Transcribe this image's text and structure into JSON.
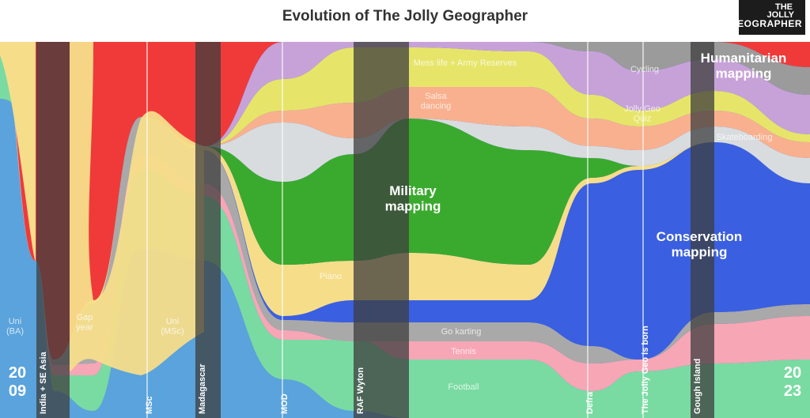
{
  "page": {
    "title": "Evolution of The Jolly Geographer",
    "logo": {
      "line1": "THE",
      "line2": "JOLLY",
      "line3": "GEOGRAPHER"
    }
  },
  "colors": {
    "uni": "#5aa3dc",
    "football": "#79dba2",
    "tennis": "#f7a6b6",
    "gokarting": "#a9a9a9",
    "conservation": "#3a5fe0",
    "piano": "#f6dd8a",
    "military": "#3aaa2e",
    "skateboarding": "#d8dcde",
    "salsa": "#f9b08f",
    "messlife": "#e6e56a",
    "quiz": "#c7a2d8",
    "cycling": "#9b9b9b",
    "humanitarian": "#f03a3a",
    "event_bar": "#3d3d3d"
  },
  "chart_data": {
    "type": "area",
    "title": "Evolution of The Jolly Geographer",
    "subtitle": "",
    "x_start_label": "2009",
    "x_end_label": "2023",
    "year_start": [
      "20",
      "09"
    ],
    "year_end": [
      "20",
      "23"
    ],
    "events": [
      "India + SE Asia",
      "MSc",
      "Madagascar",
      "MOD",
      "RAF Wyton",
      "Defra",
      "The Jolly Geo is born",
      "Gough Island"
    ],
    "series_labels": {
      "uni_ba": [
        "Uni",
        "(BA)"
      ],
      "gap_year": [
        "Gap",
        "year"
      ],
      "uni_msc": [
        "Uni",
        "(MSc)"
      ],
      "piano": "Piano",
      "military": [
        "Military",
        "mapping"
      ],
      "mess_life": "Mess life + Army Reserves",
      "salsa": [
        "Salsa",
        "dancing"
      ],
      "go_karting": "Go karting",
      "tennis": "Tennis",
      "football": "Football",
      "cycling": "Cycling",
      "quiz": [
        "Jolly Geo",
        "Quiz"
      ],
      "skateboarding": "Skateboarding",
      "conservation": [
        "Conservation",
        "mapping"
      ],
      "humanitarian": [
        "Humanitarian",
        "mapping"
      ]
    }
  }
}
